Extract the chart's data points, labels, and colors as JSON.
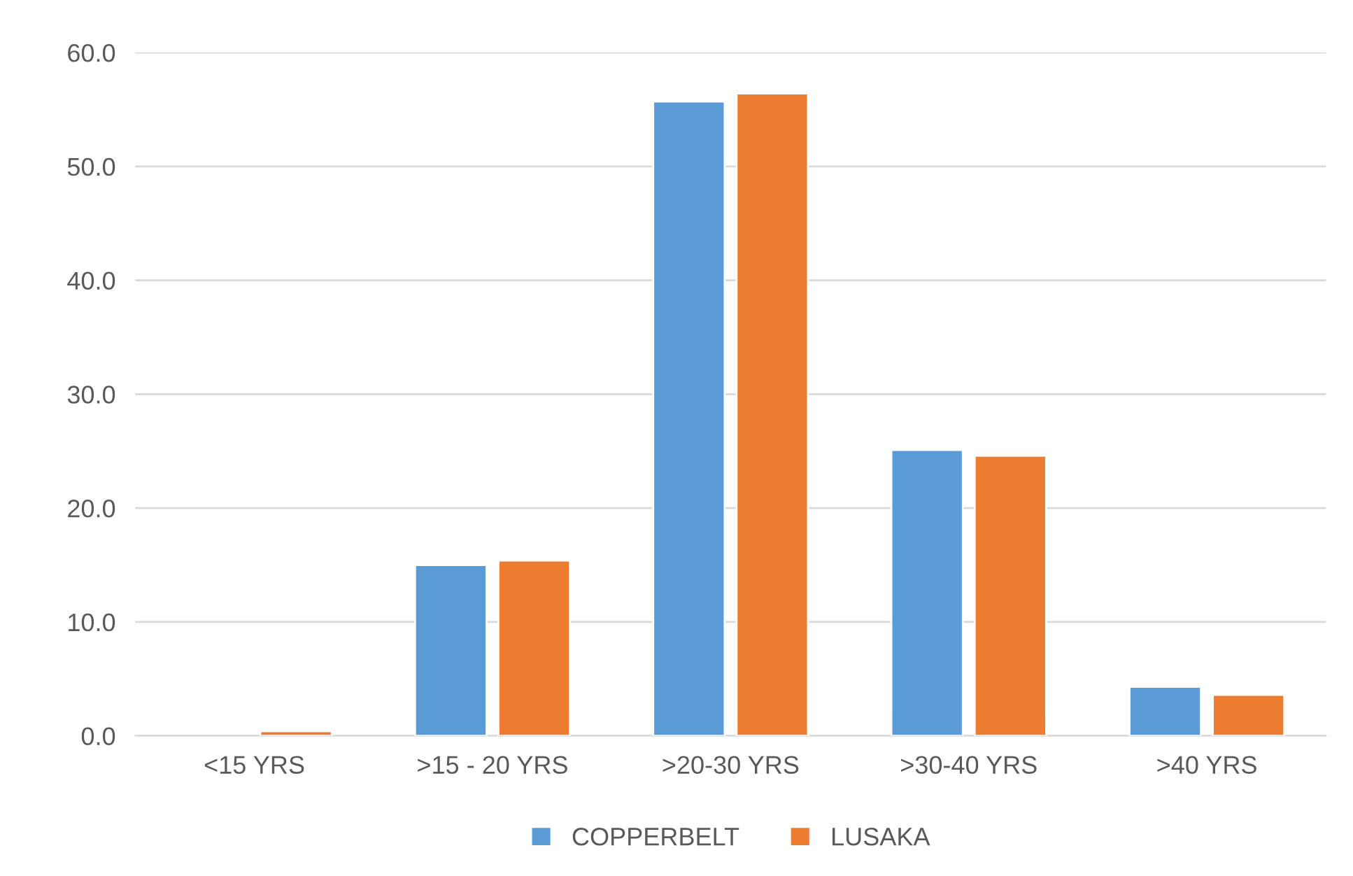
{
  "chart_data": {
    "type": "bar",
    "categories": [
      "<15 YRS",
      ">15 - 20 YRS",
      ">20-30 YRS",
      ">30-40 YRS",
      ">40 YRS"
    ],
    "series": [
      {
        "name": "COPPERBELT",
        "color": "#5b9bd5",
        "values": [
          null,
          15.0,
          55.7,
          25.1,
          4.3
        ]
      },
      {
        "name": "LUSAKA",
        "color": "#ed7d31",
        "values": [
          0.4,
          15.4,
          56.4,
          24.6,
          3.6
        ]
      }
    ],
    "ylim": [
      0,
      60
    ],
    "yticks": [
      {
        "value": 0,
        "label": "0.0"
      },
      {
        "value": 10,
        "label": "10.0"
      },
      {
        "value": 20,
        "label": "20.0"
      },
      {
        "value": 30,
        "label": "30.0"
      },
      {
        "value": 40,
        "label": "40.0"
      },
      {
        "value": 50,
        "label": "50.0"
      },
      {
        "value": 60,
        "label": "60.0"
      }
    ],
    "grid": "y",
    "legend": "bottom"
  }
}
